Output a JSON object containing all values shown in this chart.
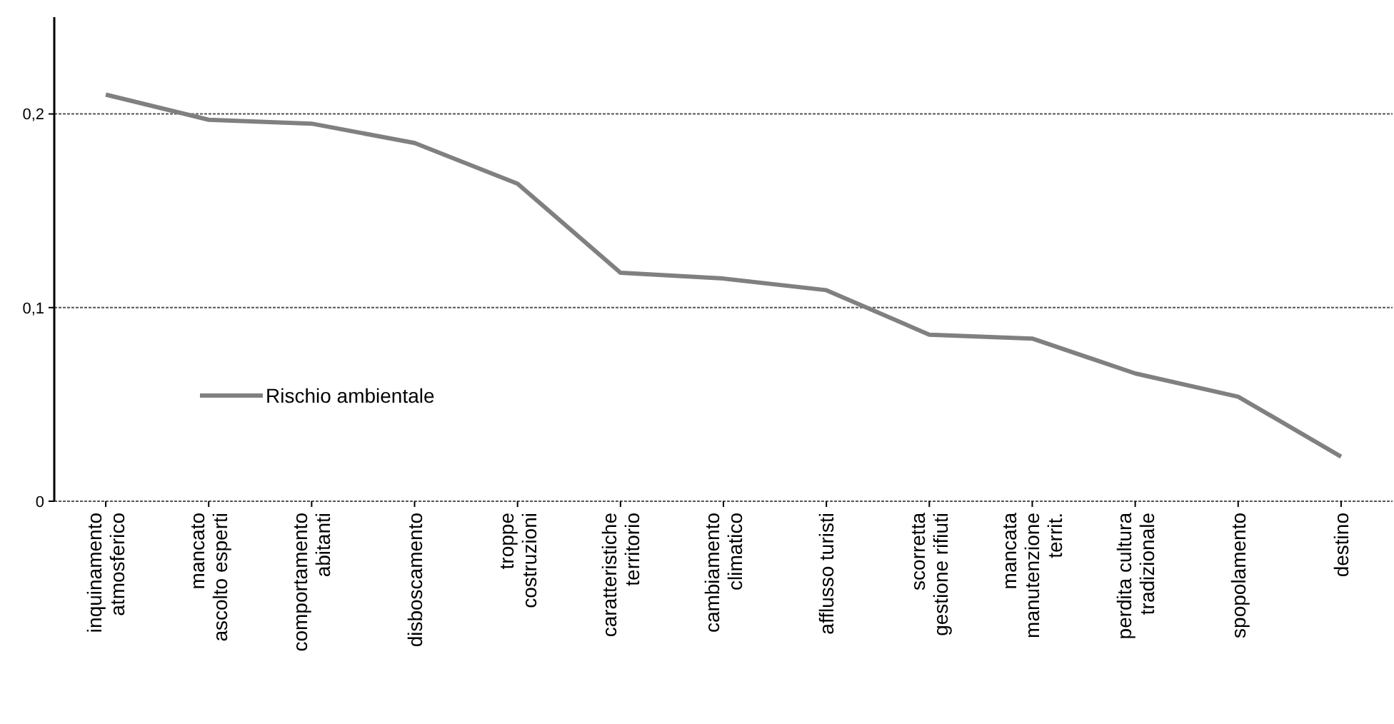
{
  "chart_data": {
    "type": "line",
    "categories": [
      "inquinamento\natmosferico",
      "mancato\nascolto esperti",
      "comportamento\nabitanti",
      "disboscamento",
      "troppe\ncostruzioni",
      "caratteristiche\nterritorio",
      "cambiamento\nclimatico",
      "afflusso turisti",
      "scorretta\ngestione rifiuti",
      "mancata\nmanutenzione\nterrit.",
      "perdita cultura\ntradizionale",
      "spopolamento",
      "destino"
    ],
    "series": [
      {
        "name": "Rischio ambientale",
        "color": "#808080",
        "values": [
          0.21,
          0.197,
          0.195,
          0.185,
          0.164,
          0.118,
          0.115,
          0.109,
          0.086,
          0.084,
          0.066,
          0.054,
          0.023
        ]
      }
    ],
    "ylim": [
      0,
      0.25
    ],
    "yticks": [
      {
        "value": 0,
        "label": "0"
      },
      {
        "value": 0.1,
        "label": "0,1"
      },
      {
        "value": 0.2,
        "label": "0,2"
      }
    ],
    "grid": "y",
    "legend": "bottom left",
    "marker": "none",
    "line_style": "solid"
  }
}
